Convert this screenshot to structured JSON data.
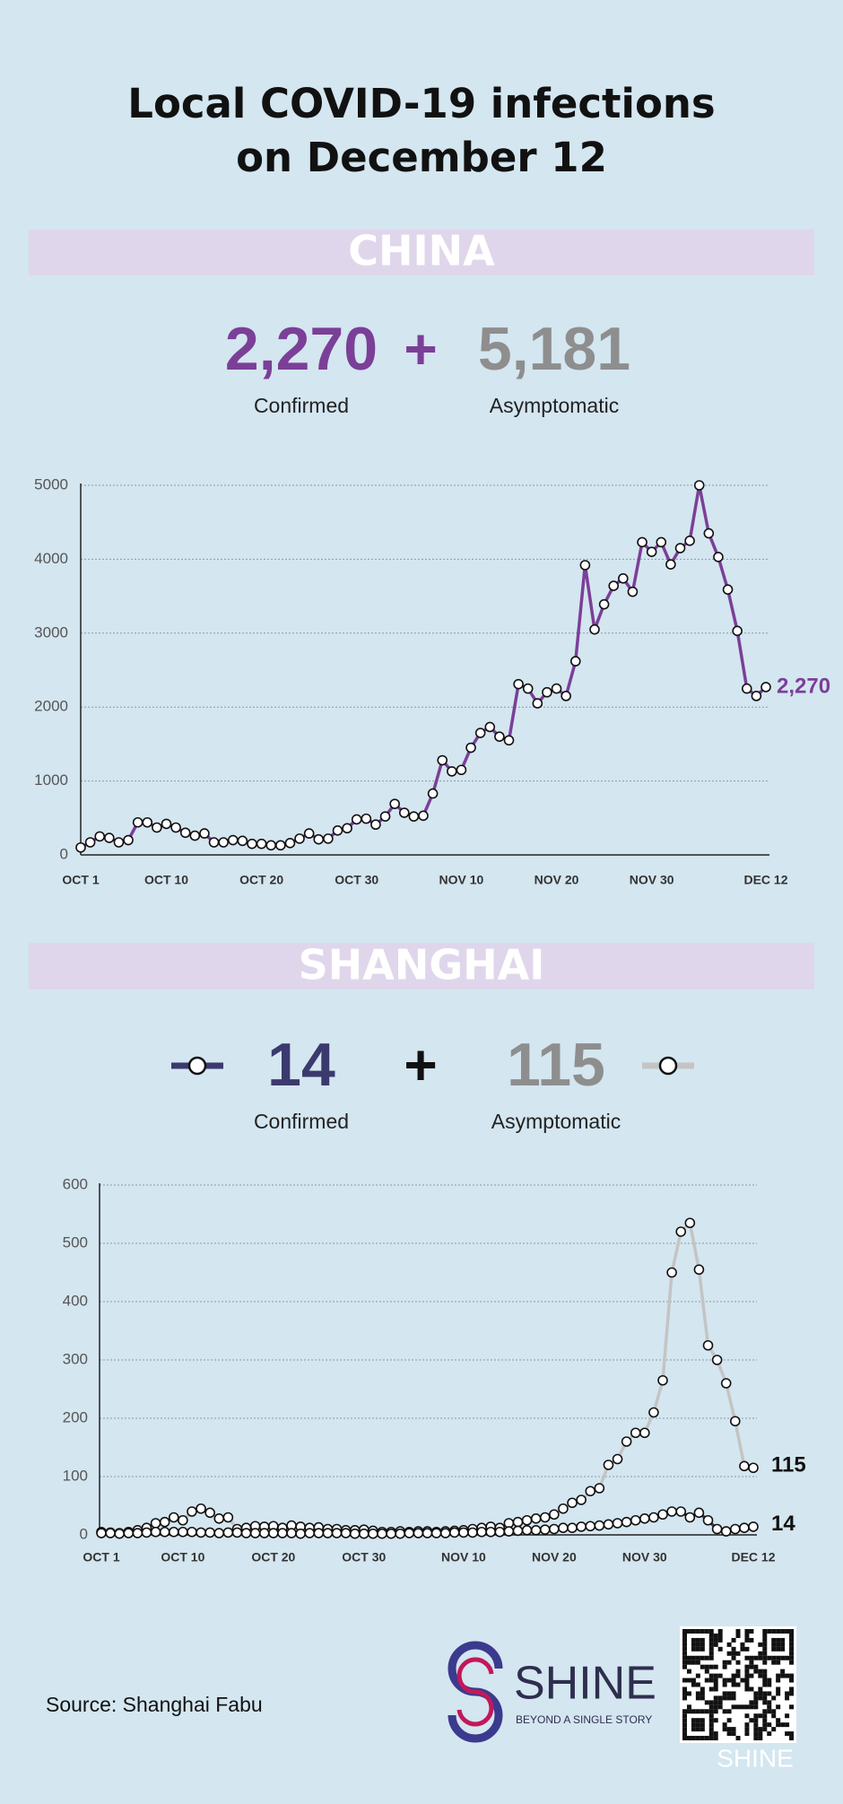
{
  "title_lines": [
    "Local COVID-19 infections",
    "on December 12"
  ],
  "chart_data": [
    {
      "type": "line",
      "section": "CHINA",
      "categories": [
        "OCT 1",
        null,
        null,
        null,
        null,
        null,
        null,
        null,
        null,
        "OCT 10",
        null,
        null,
        null,
        null,
        null,
        null,
        null,
        null,
        null,
        "OCT 20",
        null,
        null,
        null,
        null,
        null,
        null,
        null,
        null,
        null,
        "OCT 30",
        null,
        null,
        null,
        null,
        null,
        null,
        null,
        null,
        null,
        null,
        "NOV 10",
        null,
        null,
        null,
        null,
        null,
        null,
        null,
        null,
        null,
        "NOV 20",
        null,
        null,
        null,
        null,
        null,
        null,
        null,
        null,
        null,
        "NOV 30",
        null,
        null,
        null,
        null,
        null,
        null,
        null,
        null,
        null,
        null,
        null,
        "DEC 12"
      ],
      "series": [
        {
          "name": "Confirmed",
          "headline": "2,270",
          "color": "#7b3f98",
          "values": [
            100,
            170,
            250,
            230,
            170,
            200,
            440,
            440,
            370,
            420,
            370,
            300,
            260,
            290,
            170,
            170,
            200,
            190,
            150,
            150,
            130,
            130,
            160,
            220,
            290,
            210,
            220,
            330,
            360,
            480,
            490,
            410,
            520,
            690,
            570,
            520,
            530,
            830,
            1280,
            1130,
            1150,
            1450,
            1650,
            1730,
            1600,
            1550,
            2310,
            2250,
            2050,
            2200,
            2250,
            2150,
            2620,
            3920,
            3050,
            3390,
            3640,
            3740,
            3560,
            4230,
            4100,
            4230,
            3930,
            4150,
            4250,
            5000,
            4350,
            4030,
            3590,
            3030,
            2250,
            2150,
            2270
          ],
          "value_labels": [
            null,
            null,
            null,
            null,
            null,
            null,
            null,
            null,
            null,
            null,
            null,
            null,
            null,
            null,
            null,
            null,
            null,
            null,
            null,
            null,
            null,
            null,
            null,
            null,
            null,
            null,
            null,
            null,
            null,
            null,
            null,
            null,
            null,
            null,
            null,
            null,
            null,
            null,
            null,
            null,
            null,
            null,
            null,
            null,
            null,
            null,
            null,
            null,
            null,
            null,
            null,
            null,
            null,
            null,
            null,
            null,
            null,
            null,
            null,
            null,
            null,
            null,
            null,
            null,
            null,
            null,
            null,
            null,
            null,
            null,
            null,
            null,
            "2,270"
          ]
        }
      ],
      "other_stats": [
        {
          "name": "Asymptomatic",
          "headline": "5,181",
          "color": "#8e8e8e"
        }
      ],
      "ylim": [
        0,
        5000
      ],
      "yticks": [
        0,
        1000,
        2000,
        3000,
        4000,
        5000
      ],
      "grid": true
    },
    {
      "type": "line",
      "section": "SHANGHAI",
      "categories": [
        "OCT 1",
        null,
        null,
        null,
        null,
        null,
        null,
        null,
        null,
        "OCT 10",
        null,
        null,
        null,
        null,
        null,
        null,
        null,
        null,
        null,
        "OCT 20",
        null,
        null,
        null,
        null,
        null,
        null,
        null,
        null,
        null,
        "OCT 30",
        null,
        null,
        null,
        null,
        null,
        null,
        null,
        null,
        null,
        null,
        "NOV 10",
        null,
        null,
        null,
        null,
        null,
        null,
        null,
        null,
        null,
        "NOV 20",
        null,
        null,
        null,
        null,
        null,
        null,
        null,
        null,
        null,
        "NOV 30",
        null,
        null,
        null,
        null,
        null,
        null,
        null,
        null,
        null,
        null,
        null,
        "DEC 12"
      ],
      "series": [
        {
          "name": "Confirmed",
          "headline": "14",
          "color": "#3b3a6e",
          "values": [
            3,
            3,
            2,
            3,
            3,
            4,
            5,
            5,
            5,
            5,
            5,
            4,
            4,
            3,
            4,
            4,
            3,
            3,
            3,
            3,
            3,
            3,
            2,
            3,
            3,
            3,
            3,
            3,
            2,
            2,
            2,
            2,
            2,
            2,
            3,
            3,
            3,
            3,
            3,
            4,
            4,
            4,
            5,
            5,
            5,
            6,
            7,
            8,
            8,
            9,
            10,
            12,
            12,
            14,
            15,
            16,
            18,
            20,
            22,
            25,
            28,
            30,
            35,
            40,
            40,
            30,
            38,
            25,
            10,
            6,
            10,
            12,
            14
          ]
        },
        {
          "name": "Asymptomatic",
          "headline": "115",
          "color": "#c4c4c4",
          "values": [
            5,
            4,
            3,
            5,
            8,
            12,
            20,
            22,
            30,
            25,
            40,
            45,
            38,
            28,
            30,
            10,
            12,
            15,
            14,
            15,
            12,
            16,
            14,
            12,
            13,
            10,
            10,
            8,
            8,
            9,
            7,
            5,
            5,
            6,
            5,
            6,
            6,
            5,
            6,
            7,
            8,
            10,
            12,
            14,
            12,
            20,
            22,
            25,
            28,
            30,
            35,
            45,
            55,
            60,
            75,
            80,
            120,
            130,
            160,
            175,
            175,
            210,
            265,
            450,
            520,
            535,
            455,
            325,
            300,
            260,
            195,
            118,
            115
          ]
        }
      ],
      "ylim": [
        0,
        600
      ],
      "yticks": [
        0,
        100,
        200,
        300,
        400,
        500,
        600
      ],
      "grid": true
    }
  ],
  "source": "Source: Shanghai Fabu",
  "logo": {
    "name": "SHINE",
    "tagline": "BEYOND A SINGLE STORY"
  }
}
